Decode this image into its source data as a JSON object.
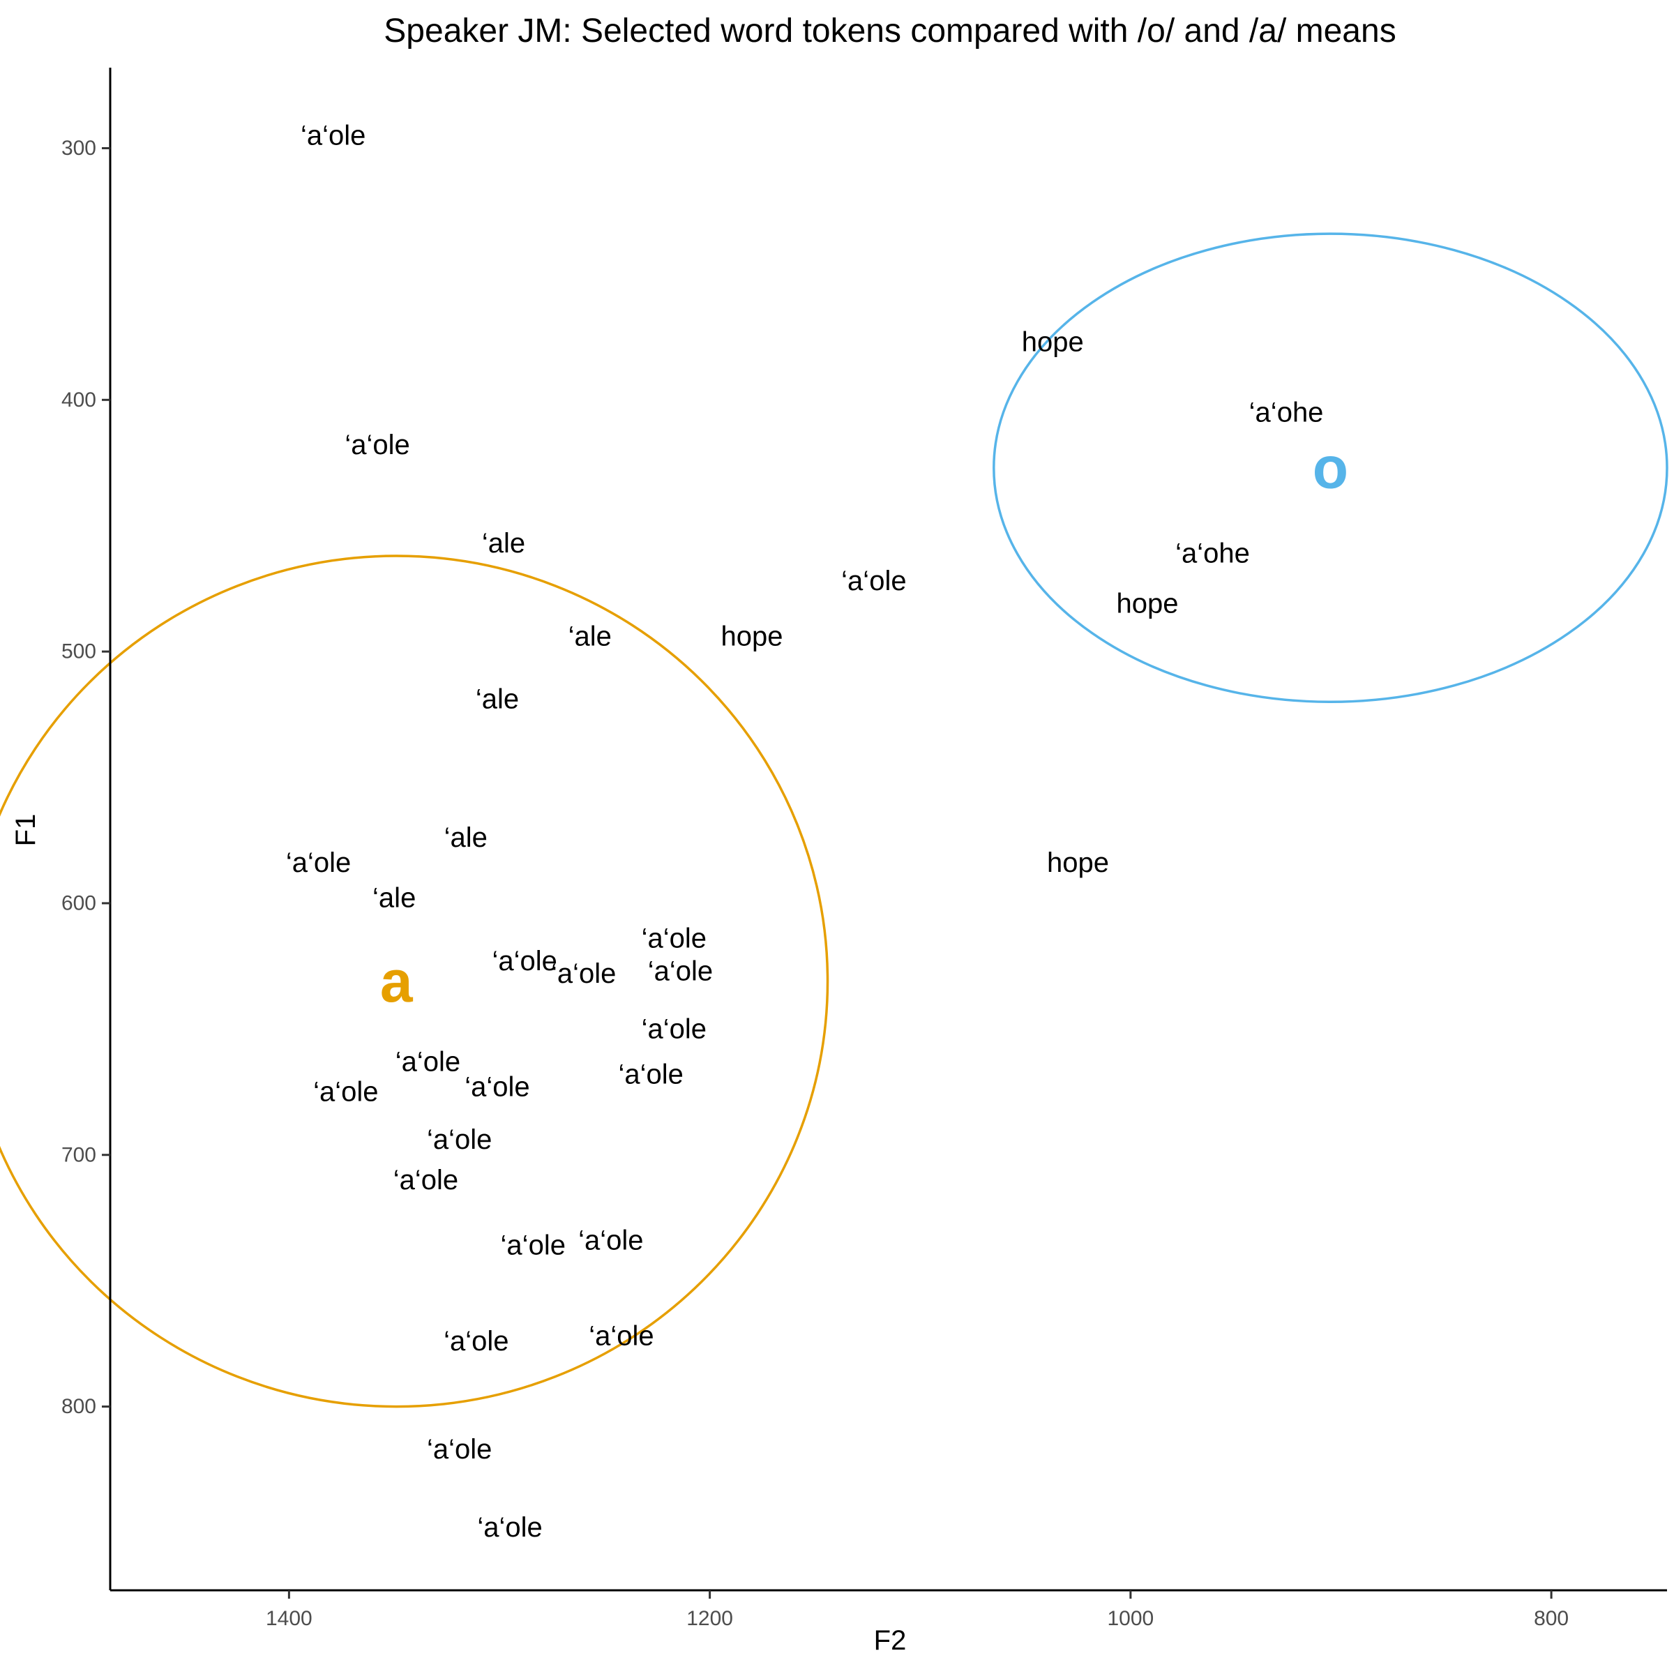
{
  "chart_data": {
    "type": "scatter",
    "title": "Speaker JM: Selected word tokens compared with /o/ and /a/ means",
    "xlabel": "F2",
    "ylabel": "F1",
    "x_reversed": true,
    "y_reversed": true,
    "xlim": [
      1485,
      745
    ],
    "ylim": [
      268,
      873
    ],
    "xticks": [
      1400,
      1200,
      1000,
      800
    ],
    "yticks": [
      300,
      400,
      500,
      600,
      700,
      800
    ],
    "grid": false,
    "legend": "none",
    "tokens": [
      {
        "label": "‘a‘ole",
        "x": 1379,
        "y": 295
      },
      {
        "label": "‘a‘ole",
        "x": 1358,
        "y": 418
      },
      {
        "label": "‘a‘ole",
        "x": 1122,
        "y": 472
      },
      {
        "label": "‘a‘ole",
        "x": 1386,
        "y": 584
      },
      {
        "label": "‘a‘ole",
        "x": 1288,
        "y": 623
      },
      {
        "label": "‘a‘ole",
        "x": 1260,
        "y": 628
      },
      {
        "label": "‘a‘ole",
        "x": 1217,
        "y": 614
      },
      {
        "label": "‘a‘ole",
        "x": 1214,
        "y": 627
      },
      {
        "label": "‘a‘ole",
        "x": 1217,
        "y": 650
      },
      {
        "label": "‘a‘ole",
        "x": 1228,
        "y": 668
      },
      {
        "label": "‘a‘ole",
        "x": 1334,
        "y": 663
      },
      {
        "label": "‘a‘ole",
        "x": 1373,
        "y": 675
      },
      {
        "label": "‘a‘ole",
        "x": 1301,
        "y": 673
      },
      {
        "label": "‘a‘ole",
        "x": 1319,
        "y": 694
      },
      {
        "label": "‘a‘ole",
        "x": 1335,
        "y": 710
      },
      {
        "label": "‘a‘ole",
        "x": 1284,
        "y": 736
      },
      {
        "label": "‘a‘ole",
        "x": 1247,
        "y": 734
      },
      {
        "label": "‘a‘ole",
        "x": 1311,
        "y": 774
      },
      {
        "label": "‘a‘ole",
        "x": 1242,
        "y": 772
      },
      {
        "label": "‘a‘ole",
        "x": 1319,
        "y": 817
      },
      {
        "label": "‘a‘ole",
        "x": 1295,
        "y": 848
      },
      {
        "label": "‘ale",
        "x": 1298,
        "y": 457
      },
      {
        "label": "‘ale",
        "x": 1257,
        "y": 494
      },
      {
        "label": "‘ale",
        "x": 1301,
        "y": 519
      },
      {
        "label": "‘ale",
        "x": 1316,
        "y": 574
      },
      {
        "label": "‘ale",
        "x": 1350,
        "y": 598
      },
      {
        "label": "hope",
        "x": 1037,
        "y": 377
      },
      {
        "label": "hope",
        "x": 1180,
        "y": 494
      },
      {
        "label": "hope",
        "x": 992,
        "y": 481
      },
      {
        "label": "hope",
        "x": 1025,
        "y": 584
      },
      {
        "label": "‘a‘ohe",
        "x": 926,
        "y": 405
      },
      {
        "label": "‘a‘ohe",
        "x": 961,
        "y": 461
      }
    ],
    "means": [
      {
        "label": "a",
        "x": 1349,
        "y": 631,
        "color": "#E69F00",
        "ellipse": {
          "rx": 205,
          "ry": 169
        }
      },
      {
        "label": "o",
        "x": 905,
        "y": 427,
        "color": "#56B4E9",
        "ellipse": {
          "rx": 160,
          "ry": 93
        }
      }
    ]
  }
}
